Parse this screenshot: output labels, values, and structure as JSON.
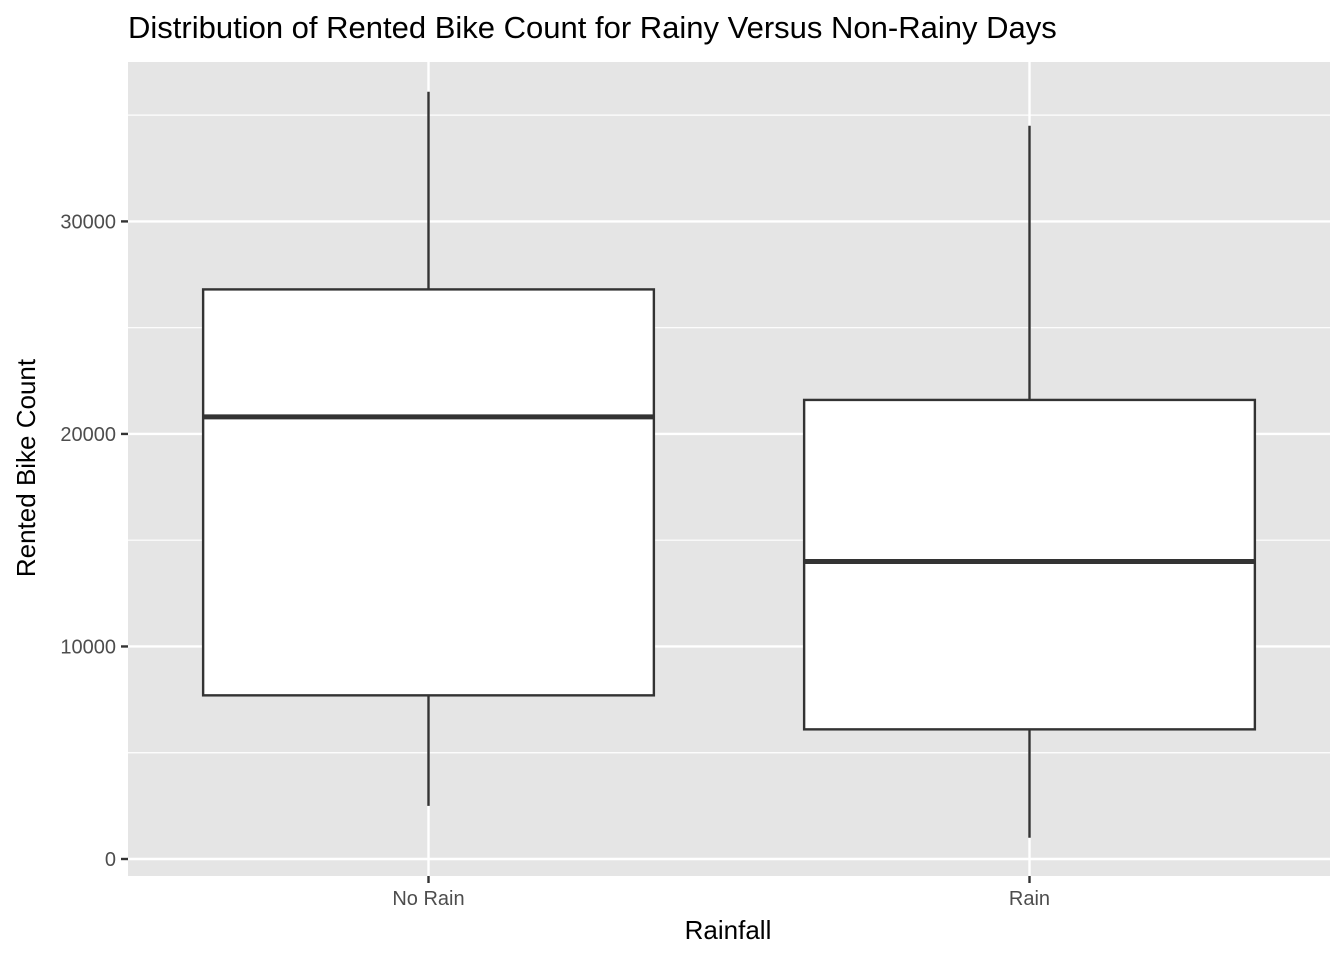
{
  "chart_data": {
    "type": "boxplot",
    "title": "Distribution of Rented Bike Count for Rainy Versus Non-Rainy Days",
    "xlabel": "Rainfall",
    "ylabel": "Rented Bike Count",
    "categories": [
      "No Rain",
      "Rain"
    ],
    "ylim": [
      -800,
      37500
    ],
    "y_ticks": [
      0,
      10000,
      20000,
      30000
    ],
    "y_tick_labels": [
      "0",
      "10000",
      "20000",
      "30000"
    ],
    "grid": true,
    "legend": "none",
    "boxes": [
      {
        "category": "No Rain",
        "min": 2500,
        "q1": 7700,
        "median": 20800,
        "q3": 26800,
        "max": 36100
      },
      {
        "category": "Rain",
        "min": 1000,
        "q1": 6100,
        "median": 14000,
        "q3": 21600,
        "max": 34500
      }
    ],
    "colors": {
      "panel_background": "#e5e5e5",
      "grid": "#ffffff",
      "box_fill": "#ffffff",
      "box_stroke": "#333333",
      "tick_text": "#4d4d4d",
      "tick_mark": "#333333"
    }
  }
}
